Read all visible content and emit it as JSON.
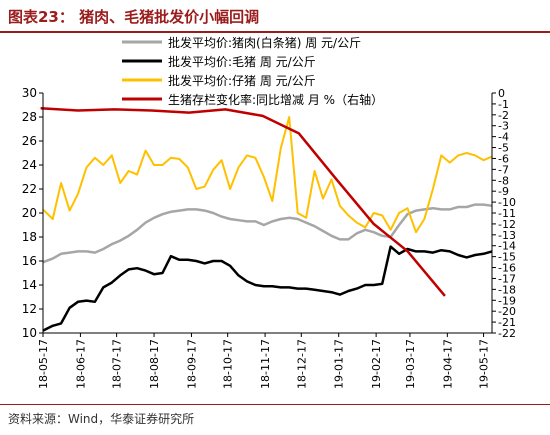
{
  "figure": {
    "title": "图表23：  猪肉、毛猪批发价小幅回调",
    "source": "资料来源：Wind，华泰证券研究所"
  },
  "colors": {
    "brand": "#9a1c1c",
    "pork": "#a6a6a6",
    "hog": "#000000",
    "piglet": "#ffc000",
    "inventory": "#c00000"
  },
  "chart_data": {
    "type": "line",
    "title": "",
    "xlabel": "",
    "ylabel": "",
    "y2label": "",
    "x_ticks": [
      "18-05-17",
      "18-06-17",
      "18-07-17",
      "18-08-17",
      "18-09-17",
      "18-10-17",
      "18-11-17",
      "18-12-17",
      "19-01-17",
      "19-02-17",
      "19-03-17",
      "19-04-17",
      "19-05-17"
    ],
    "x_range": [
      "2018-05-17",
      "2019-05-24"
    ],
    "ylim": [
      10,
      30
    ],
    "y_ticks": [
      10,
      12,
      14,
      16,
      18,
      20,
      22,
      24,
      26,
      28,
      30
    ],
    "y2lim": [
      -22,
      0
    ],
    "y2_ticks": [
      0,
      -1,
      -2,
      -3,
      -4,
      -5,
      -6,
      -7,
      -8,
      -9,
      -10,
      -11,
      -12,
      -13,
      -14,
      -15,
      -16,
      -17,
      -18,
      -19,
      -20,
      -21,
      -22
    ],
    "legend_position": "top-center",
    "series": [
      {
        "name": "批发平均价:猪肉(白条猪) 周 元/公斤",
        "axis": "left",
        "color_key": "pork",
        "x": [
          "2018-05-17",
          "2018-05-25",
          "2018-06-01",
          "2018-06-08",
          "2018-06-15",
          "2018-06-22",
          "2018-06-29",
          "2018-07-06",
          "2018-07-13",
          "2018-07-20",
          "2018-07-27",
          "2018-08-03",
          "2018-08-10",
          "2018-08-17",
          "2018-08-24",
          "2018-08-31",
          "2018-09-07",
          "2018-09-14",
          "2018-09-21",
          "2018-09-28",
          "2018-10-05",
          "2018-10-12",
          "2018-10-19",
          "2018-10-26",
          "2018-11-02",
          "2018-11-09",
          "2018-11-16",
          "2018-11-23",
          "2018-11-30",
          "2018-12-07",
          "2018-12-14",
          "2018-12-21",
          "2018-12-28",
          "2019-01-04",
          "2019-01-11",
          "2019-01-18",
          "2019-01-25",
          "2019-02-01",
          "2019-02-08",
          "2019-02-15",
          "2019-02-22",
          "2019-03-01",
          "2019-03-08",
          "2019-03-15",
          "2019-03-22",
          "2019-03-29",
          "2019-04-05",
          "2019-04-12",
          "2019-04-19",
          "2019-04-26",
          "2019-05-03",
          "2019-05-10",
          "2019-05-17",
          "2019-05-24"
        ],
        "values": [
          15.9,
          16.2,
          16.6,
          16.7,
          16.8,
          16.8,
          16.7,
          17.0,
          17.4,
          17.7,
          18.1,
          18.6,
          19.2,
          19.6,
          19.9,
          20.1,
          20.2,
          20.3,
          20.3,
          20.2,
          20.0,
          19.7,
          19.5,
          19.4,
          19.3,
          19.3,
          19.0,
          19.3,
          19.5,
          19.6,
          19.5,
          19.2,
          18.9,
          18.5,
          18.1,
          17.8,
          17.8,
          18.3,
          18.6,
          18.4,
          18.1,
          18.0,
          19.0,
          19.9,
          20.2,
          20.3,
          20.4,
          20.3,
          20.3,
          20.5,
          20.5,
          20.7,
          20.7,
          20.6
        ]
      },
      {
        "name": "批发平均价:毛猪 周 元/公斤",
        "axis": "left",
        "color_key": "hog",
        "x": [
          "2018-05-17",
          "2018-05-25",
          "2018-06-01",
          "2018-06-08",
          "2018-06-15",
          "2018-06-22",
          "2018-06-29",
          "2018-07-06",
          "2018-07-13",
          "2018-07-20",
          "2018-07-27",
          "2018-08-03",
          "2018-08-10",
          "2018-08-17",
          "2018-08-24",
          "2018-08-31",
          "2018-09-07",
          "2018-09-14",
          "2018-09-21",
          "2018-09-28",
          "2018-10-05",
          "2018-10-12",
          "2018-10-19",
          "2018-10-26",
          "2018-11-02",
          "2018-11-09",
          "2018-11-16",
          "2018-11-23",
          "2018-11-30",
          "2018-12-07",
          "2018-12-14",
          "2018-12-21",
          "2018-12-28",
          "2019-01-04",
          "2019-01-11",
          "2019-01-18",
          "2019-01-25",
          "2019-02-01",
          "2019-02-08",
          "2019-02-15",
          "2019-02-22",
          "2019-03-01",
          "2019-03-08",
          "2019-03-15",
          "2019-03-22",
          "2019-03-29",
          "2019-04-05",
          "2019-04-12",
          "2019-04-19",
          "2019-04-26",
          "2019-05-03",
          "2019-05-10",
          "2019-05-17",
          "2019-05-24"
        ],
        "values": [
          10.2,
          10.6,
          10.8,
          12.1,
          12.6,
          12.7,
          12.6,
          13.8,
          14.2,
          14.8,
          15.3,
          15.4,
          15.2,
          14.9,
          15.0,
          16.4,
          16.1,
          16.1,
          16.0,
          15.8,
          16.0,
          16.0,
          15.6,
          14.8,
          14.3,
          14.0,
          13.9,
          13.9,
          13.8,
          13.8,
          13.7,
          13.7,
          13.6,
          13.5,
          13.4,
          13.2,
          13.5,
          13.7,
          14.0,
          14.0,
          14.1,
          17.2,
          16.6,
          17.0,
          16.8,
          16.8,
          16.7,
          16.9,
          16.8,
          16.5,
          16.3,
          16.5,
          16.6,
          16.8
        ]
      },
      {
        "name": "批发平均价:仔猪 周 元/公斤",
        "axis": "left",
        "color_key": "piglet",
        "x": [
          "2018-05-17",
          "2018-05-25",
          "2018-06-01",
          "2018-06-08",
          "2018-06-15",
          "2018-06-22",
          "2018-06-29",
          "2018-07-06",
          "2018-07-13",
          "2018-07-20",
          "2018-07-27",
          "2018-08-03",
          "2018-08-10",
          "2018-08-17",
          "2018-08-24",
          "2018-08-31",
          "2018-09-07",
          "2018-09-14",
          "2018-09-21",
          "2018-09-28",
          "2018-10-05",
          "2018-10-12",
          "2018-10-19",
          "2018-10-26",
          "2018-11-02",
          "2018-11-09",
          "2018-11-16",
          "2018-11-23",
          "2018-11-30",
          "2018-12-07",
          "2018-12-14",
          "2018-12-21",
          "2018-12-28",
          "2019-01-04",
          "2019-01-11",
          "2019-01-18",
          "2019-01-25",
          "2019-02-01",
          "2019-02-08",
          "2019-02-15",
          "2019-02-22",
          "2019-03-01",
          "2019-03-08",
          "2019-03-15",
          "2019-03-22",
          "2019-03-29",
          "2019-04-05",
          "2019-04-12",
          "2019-04-19",
          "2019-04-26",
          "2019-05-03",
          "2019-05-10",
          "2019-05-17",
          "2019-05-24"
        ],
        "values": [
          20.3,
          19.5,
          22.5,
          20.2,
          21.6,
          23.8,
          24.6,
          24.0,
          24.8,
          22.5,
          23.5,
          23.2,
          25.2,
          24.0,
          24.0,
          24.6,
          24.5,
          23.8,
          22.0,
          22.2,
          23.6,
          24.4,
          22.0,
          23.8,
          24.8,
          24.6,
          23.0,
          21.0,
          25.4,
          28.0,
          20.0,
          19.6,
          23.5,
          21.2,
          22.8,
          20.6,
          19.8,
          19.2,
          18.8,
          20.0,
          19.8,
          18.6,
          20.0,
          20.4,
          18.4,
          19.5,
          22.0,
          24.8,
          24.2,
          24.8,
          25.0,
          24.8,
          24.4,
          24.7
        ]
      },
      {
        "name": "生猪存栏变化率:同比增减 月 %（右轴）",
        "axis": "right",
        "color_key": "inventory",
        "x": [
          "2018-05-15",
          "2018-06-15",
          "2018-07-15",
          "2018-08-15",
          "2018-09-15",
          "2018-10-15",
          "2018-11-15",
          "2018-12-15",
          "2019-01-15",
          "2019-02-15",
          "2019-03-15",
          "2019-04-15"
        ],
        "values": [
          -1.4,
          -1.6,
          -1.5,
          -1.6,
          -1.8,
          -1.5,
          -2.1,
          -3.7,
          -7.9,
          -12.0,
          -14.5,
          -18.6
        ]
      }
    ]
  }
}
